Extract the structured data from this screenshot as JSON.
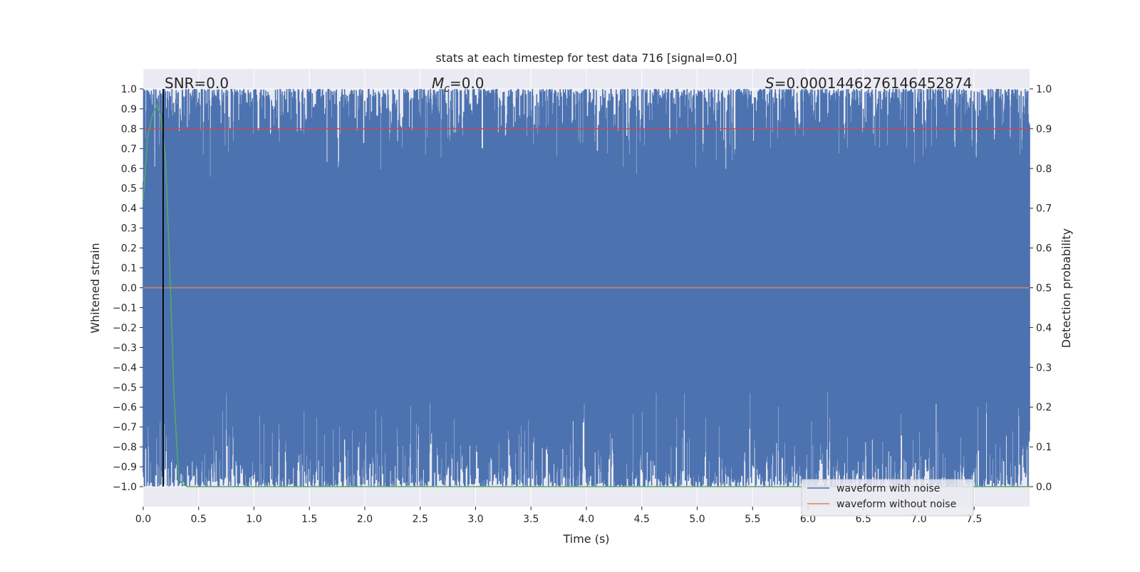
{
  "chart_data": {
    "type": "line",
    "title": "stats at each timestep for test data 716 [signal=0.0]",
    "xlabel": "Time (s)",
    "ylabel": "Whitened strain",
    "y2label": "Detection probability",
    "xlim": [
      0.0,
      8.0
    ],
    "ylim": [
      -1.1,
      1.1
    ],
    "y2lim": [
      -0.05,
      1.05
    ],
    "xticks": [
      "0.0",
      "0.5",
      "1.0",
      "1.5",
      "2.0",
      "2.5",
      "3.0",
      "3.5",
      "4.0",
      "4.5",
      "5.0",
      "5.5",
      "6.0",
      "6.5",
      "7.0",
      "7.5"
    ],
    "yticks": [
      "1.0",
      "0.9",
      "0.8",
      "0.7",
      "0.6",
      "0.5",
      "0.4",
      "0.3",
      "0.2",
      "0.1",
      "0.0",
      "−0.1",
      "−0.2",
      "−0.3",
      "−0.4",
      "−0.5",
      "−0.6",
      "−0.7",
      "−0.8",
      "−0.9",
      "−1.0"
    ],
    "y2ticks": [
      "1.0",
      "0.9",
      "0.8",
      "0.7",
      "0.6",
      "0.5",
      "0.4",
      "0.3",
      "0.2",
      "0.1",
      "0.0"
    ],
    "grid": true,
    "legend_position": "lower-right",
    "annotations": {
      "snr": "SNR=0.0",
      "mc_symbol": "M",
      "mc_sub": "c",
      "mc_value": "=0.0",
      "s_symbol": "S",
      "s_value": "=0.0001446276146452874"
    },
    "vertical_marker_x": 0.18,
    "threshold_probability": 0.9,
    "series": [
      {
        "name": "waveform with noise",
        "color": "#4c72b0",
        "description_type": "noise",
        "y_range": [
          -1.0,
          1.0
        ]
      },
      {
        "name": "waveform without noise",
        "color": "#dd8452",
        "x": [
          0.0,
          8.0
        ],
        "y": [
          0.0,
          0.0
        ]
      },
      {
        "name": "",
        "color": "#55a868",
        "axis": "right",
        "x": [
          0.0,
          0.04,
          0.08,
          0.12,
          0.16,
          0.2,
          0.24,
          0.28,
          0.32,
          0.36,
          0.4,
          1.0,
          2.0,
          3.0,
          4.0,
          5.0,
          6.0,
          7.0,
          8.0
        ],
        "y": [
          0.72,
          0.88,
          0.93,
          0.96,
          0.93,
          0.83,
          0.55,
          0.22,
          0.02,
          0.005,
          0.0,
          0.0,
          0.0,
          0.0,
          0.0,
          0.0,
          0.0,
          0.0,
          0.0
        ]
      }
    ],
    "colors": {
      "plot_background": "#eaeaf2",
      "grid": "#ffffff",
      "threshold": "#c44e52",
      "marker": "#000000"
    }
  }
}
